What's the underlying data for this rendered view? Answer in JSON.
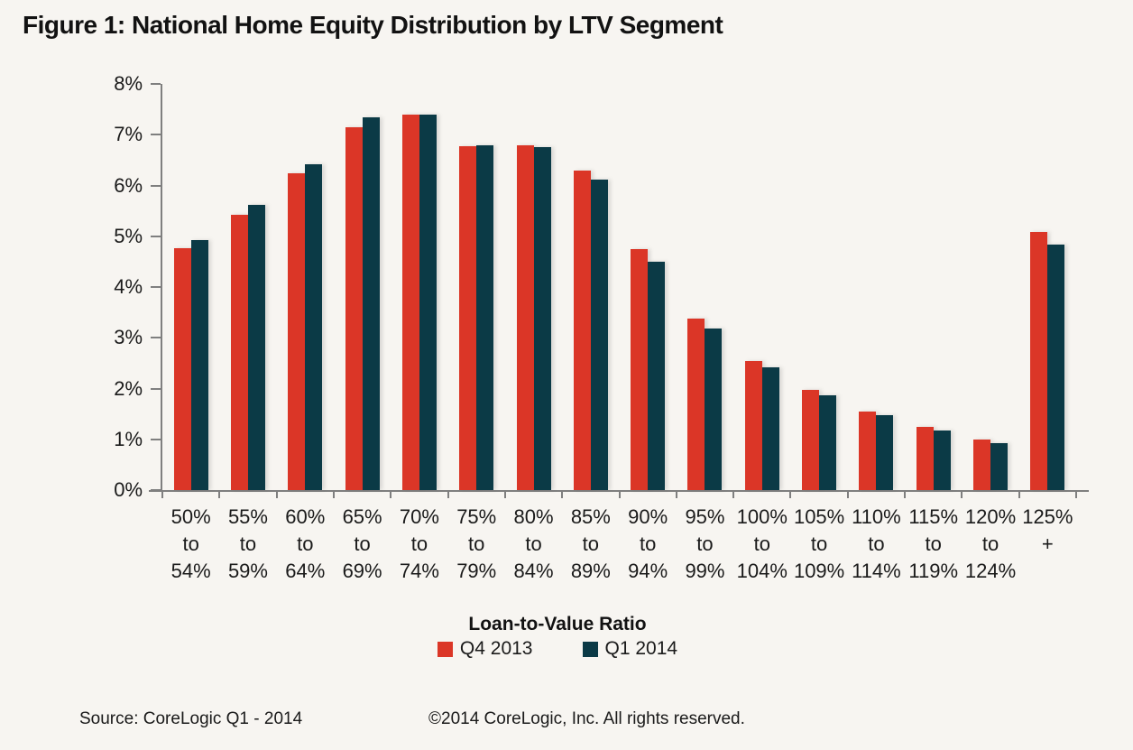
{
  "title": "Figure 1: National Home Equity Distribution by LTV Segment",
  "chart_data": {
    "type": "bar",
    "title": "Figure 1: National Home Equity Distribution by LTV Segment",
    "xlabel": "Loan-to-Value Ratio",
    "ylabel": "",
    "ylim": [
      0,
      8
    ],
    "grid": false,
    "legend_position": "bottom",
    "yticks": [
      "0%",
      "1%",
      "2%",
      "3%",
      "4%",
      "5%",
      "6%",
      "7%",
      "8%"
    ],
    "categories": [
      "50% to 54%",
      "55% to 59%",
      "60% to 64%",
      "65% to 69%",
      "70% to 74%",
      "75% to 79%",
      "80% to 84%",
      "85% to 89%",
      "90% to 94%",
      "95% to 99%",
      "100% to 104%",
      "105% to 109%",
      "110% to 114%",
      "115% to 119%",
      "120% to 124%",
      "125% +"
    ],
    "categories_lines": [
      [
        "50%",
        "to",
        "54%"
      ],
      [
        "55%",
        "to",
        "59%"
      ],
      [
        "60%",
        "to",
        "64%"
      ],
      [
        "65%",
        "to",
        "69%"
      ],
      [
        "70%",
        "to",
        "74%"
      ],
      [
        "75%",
        "to",
        "79%"
      ],
      [
        "80%",
        "to",
        "84%"
      ],
      [
        "85%",
        "to",
        "89%"
      ],
      [
        "90%",
        "to",
        "94%"
      ],
      [
        "95%",
        "to",
        "99%"
      ],
      [
        "100%",
        "to",
        "104%"
      ],
      [
        "105%",
        "to",
        "109%"
      ],
      [
        "110%",
        "to",
        "114%"
      ],
      [
        "115%",
        "to",
        "119%"
      ],
      [
        "120%",
        "to",
        "124%"
      ],
      [
        "125%",
        "+"
      ]
    ],
    "series": [
      {
        "name": "Q4 2013",
        "color": "#DB3627",
        "values": [
          4.77,
          5.43,
          6.24,
          7.14,
          7.39,
          6.77,
          6.8,
          6.29,
          4.74,
          3.37,
          2.55,
          1.97,
          1.55,
          1.24,
          1.0,
          5.08
        ]
      },
      {
        "name": "Q1 2014",
        "color": "#0B3A46",
        "values": [
          4.92,
          5.61,
          6.42,
          7.35,
          7.39,
          6.79,
          6.76,
          6.11,
          4.49,
          3.19,
          2.42,
          1.87,
          1.47,
          1.18,
          0.93,
          4.84
        ]
      }
    ],
    "axis_color": "#7F7F7F"
  },
  "footer": {
    "source": "Source: CoreLogic Q1 - 2014",
    "copyright": "©2014 CoreLogic, Inc. All rights reserved."
  }
}
